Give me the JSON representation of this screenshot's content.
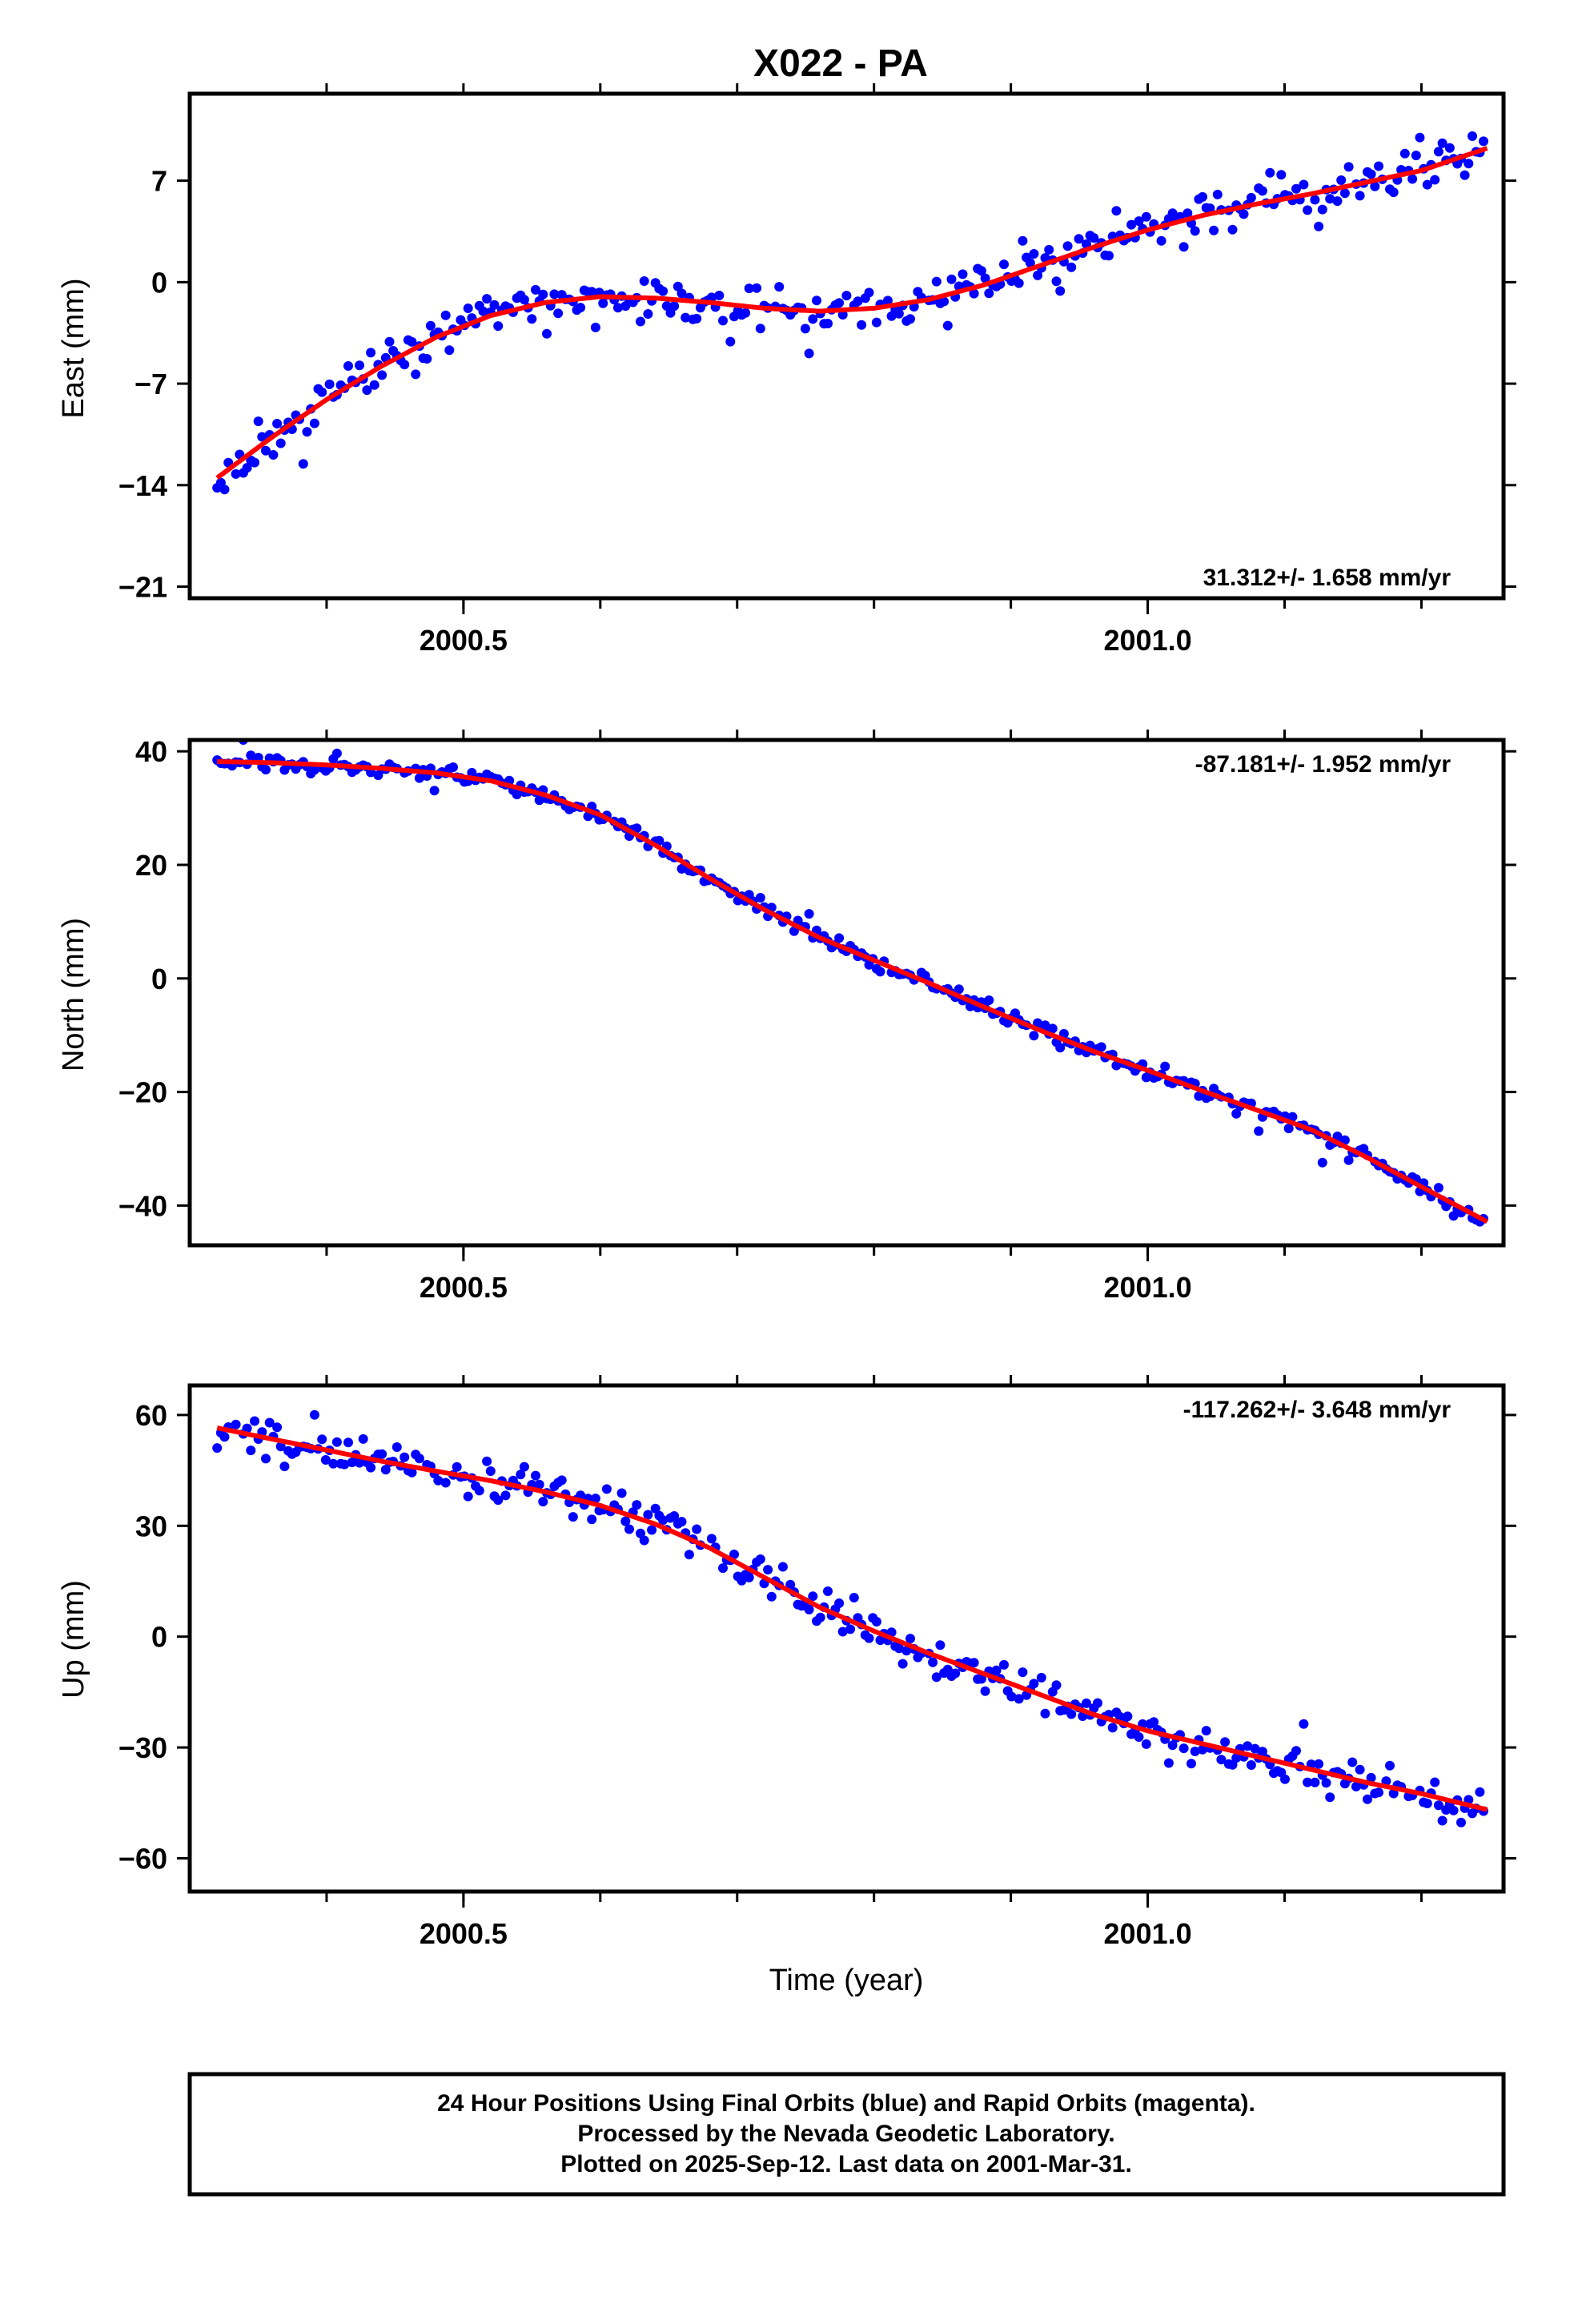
{
  "title": "X022 - PA",
  "colors": {
    "final_orbits": "#0000ff",
    "rapid_orbits": "#ff00ff",
    "fit_line": "#ff0000",
    "frame": "#000000",
    "background": "#ffffff"
  },
  "x_axis_label": "Time (year)",
  "caption": {
    "line1": "24 Hour Positions Using Final Orbits (blue) and Rapid Orbits (magenta).",
    "line2": "Processed by the Nevada Geodetic Laboratory.",
    "line3": "Plotted on 2025-Sep-12. Last data on 2001-Mar-31."
  },
  "chart_data": [
    {
      "type": "scatter",
      "component": "east",
      "ylabel": "East (mm)",
      "rate_label": "31.312+/- 1.658 mm/yr",
      "rate_position": "bottom-right",
      "xlim": [
        2000.3,
        2001.26
      ],
      "ylim": [
        -21.8,
        13.0
      ],
      "x_ticks": [
        2000.5,
        2001.0
      ],
      "x_minor_ticks": [
        2000.4,
        2000.5,
        2000.6,
        2000.7,
        2000.8,
        2000.9,
        2001.0,
        2001.1,
        2001.2
      ],
      "y_ticks": [
        7,
        0,
        -7,
        -14,
        -21
      ],
      "grid": false,
      "fit_curve": {
        "x": [
          2000.32,
          2000.36,
          2000.4,
          2000.44,
          2000.48,
          2000.52,
          2000.56,
          2000.6,
          2000.64,
          2000.68,
          2000.72,
          2000.76,
          2000.8,
          2000.84,
          2000.88,
          2000.92,
          2000.96,
          2001.0,
          2001.04,
          2001.08,
          2001.12,
          2001.16,
          2001.2,
          2001.25
        ],
        "y": [
          -13.5,
          -10.7,
          -8.1,
          -5.8,
          -3.8,
          -2.3,
          -1.4,
          -1.0,
          -1.1,
          -1.4,
          -1.8,
          -2.0,
          -1.8,
          -1.2,
          -0.2,
          1.1,
          2.4,
          3.6,
          4.6,
          5.4,
          6.1,
          6.9,
          7.7,
          9.3
        ]
      },
      "noise": {
        "seed": 11,
        "spread": 1.5,
        "outlier_rate": 0.05,
        "outlier_spread": 3.5
      }
    },
    {
      "type": "scatter",
      "component": "north",
      "ylabel": "North (mm)",
      "rate_label": "-87.181+/- 1.952 mm/yr",
      "rate_position": "top-right",
      "xlim": [
        2000.3,
        2001.26
      ],
      "ylim": [
        -47,
        42
      ],
      "x_ticks": [
        2000.5,
        2001.0
      ],
      "x_minor_ticks": [
        2000.4,
        2000.5,
        2000.6,
        2000.7,
        2000.8,
        2000.9,
        2001.0,
        2001.1,
        2001.2
      ],
      "y_ticks": [
        40,
        20,
        0,
        -20,
        -40
      ],
      "grid": false,
      "fit_curve": {
        "x": [
          2000.32,
          2000.36,
          2000.4,
          2000.44,
          2000.48,
          2000.52,
          2000.56,
          2000.6,
          2000.64,
          2000.68,
          2000.72,
          2000.76,
          2000.8,
          2000.84,
          2000.88,
          2000.92,
          2000.96,
          2001.0,
          2001.04,
          2001.08,
          2001.12,
          2001.16,
          2001.2,
          2001.25
        ],
        "y": [
          38.2,
          38.0,
          37.6,
          37.0,
          36.2,
          34.8,
          32.3,
          28.8,
          23.5,
          17.6,
          12.1,
          7.2,
          3.2,
          -0.8,
          -5.0,
          -9.0,
          -12.8,
          -16.2,
          -19.8,
          -23.2,
          -26.7,
          -31.5,
          -36.7,
          -43.1
        ]
      },
      "noise": {
        "seed": 23,
        "spread": 1.5,
        "outlier_rate": 0.04,
        "outlier_spread": 6.0
      }
    },
    {
      "type": "scatter",
      "component": "up",
      "ylabel": "Up (mm)",
      "rate_label": "-117.262+/- 3.648 mm/yr",
      "rate_position": "top-right",
      "xlim": [
        2000.3,
        2001.26
      ],
      "ylim": [
        -69,
        68
      ],
      "x_ticks": [
        2000.5,
        2001.0
      ],
      "x_minor_ticks": [
        2000.4,
        2000.5,
        2000.6,
        2000.7,
        2000.8,
        2000.9,
        2001.0,
        2001.1,
        2001.2
      ],
      "y_ticks": [
        60,
        30,
        0,
        -30,
        -60
      ],
      "grid": false,
      "fit_curve": {
        "x": [
          2000.32,
          2000.36,
          2000.4,
          2000.44,
          2000.48,
          2000.52,
          2000.56,
          2000.6,
          2000.64,
          2000.68,
          2000.72,
          2000.76,
          2000.8,
          2000.84,
          2000.88,
          2000.92,
          2000.96,
          2001.0,
          2001.04,
          2001.08,
          2001.12,
          2001.16,
          2001.2,
          2001.25
        ],
        "y": [
          56.5,
          53.5,
          50.5,
          47.5,
          44.8,
          42.2,
          39.2,
          35.5,
          30.5,
          24.0,
          16.0,
          8.0,
          1.5,
          -4.5,
          -10.0,
          -15.5,
          -21.0,
          -25.5,
          -29.0,
          -32.5,
          -36.0,
          -39.5,
          -42.5,
          -47.0
        ]
      },
      "noise": {
        "seed": 37,
        "spread": 5.0,
        "outlier_rate": 0.06,
        "outlier_spread": 12.0
      }
    }
  ]
}
